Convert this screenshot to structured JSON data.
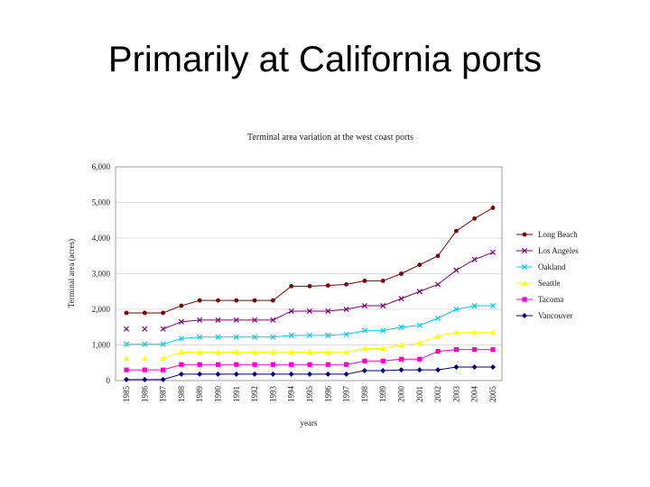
{
  "slide": {
    "title": "Primarily at California ports"
  },
  "chart_data": {
    "type": "line",
    "title": "Terminal area variation at the west coast ports",
    "xlabel": "years",
    "ylabel": "Terminal area (acres)",
    "ylim": [
      0,
      6000
    ],
    "yticks": [
      "0",
      "1,000",
      "2,000",
      "3,000",
      "4,000",
      "5,000",
      "6,000"
    ],
    "ytick_values": [
      0,
      1000,
      2000,
      3000,
      4000,
      5000,
      6000
    ],
    "grid": true,
    "legend": "right",
    "x": [
      "1985",
      "1986",
      "1987",
      "1988",
      "1989",
      "1990",
      "1991",
      "1992",
      "1993",
      "1994",
      "1995",
      "1996",
      "1997",
      "1998",
      "1999",
      "2000",
      "2001",
      "2002",
      "2003",
      "2004",
      "2005"
    ],
    "series": [
      {
        "name": "Long Beach",
        "color": "#800000",
        "marker": "circle",
        "values": [
          1900,
          1900,
          1900,
          2100,
          2250,
          2250,
          2250,
          2250,
          2250,
          2650,
          2650,
          2670,
          2700,
          2800,
          2800,
          3000,
          3250,
          3500,
          4200,
          4550,
          4850
        ]
      },
      {
        "name": "Los Angeles",
        "color": "#800080",
        "marker": "x",
        "values": [
          1450,
          1450,
          1450,
          1650,
          1700,
          1700,
          1700,
          1700,
          1700,
          1950,
          1950,
          1950,
          2000,
          2100,
          2100,
          2300,
          2500,
          2700,
          3100,
          3400,
          3600
        ]
      },
      {
        "name": "Oakland",
        "color": "#00CCFF",
        "marker": "x",
        "values": [
          1020,
          1020,
          1020,
          1180,
          1220,
          1220,
          1220,
          1220,
          1220,
          1270,
          1270,
          1270,
          1300,
          1400,
          1400,
          1500,
          1550,
          1750,
          2000,
          2100,
          2100
        ]
      },
      {
        "name": "Seattle",
        "color": "#FFFF00",
        "marker": "triangle",
        "values": [
          620,
          620,
          620,
          800,
          800,
          800,
          800,
          800,
          800,
          800,
          800,
          800,
          800,
          900,
          900,
          1000,
          1050,
          1250,
          1350,
          1350,
          1350
        ]
      },
      {
        "name": "Tacoma",
        "color": "#FF00CC",
        "marker": "square",
        "values": [
          300,
          300,
          300,
          450,
          450,
          450,
          450,
          450,
          450,
          450,
          450,
          450,
          450,
          550,
          550,
          600,
          600,
          820,
          870,
          870,
          870
        ]
      },
      {
        "name": "Vancouver",
        "color": "#000080",
        "marker": "diamond",
        "values": [
          30,
          30,
          30,
          180,
          180,
          180,
          180,
          180,
          180,
          180,
          180,
          180,
          180,
          280,
          280,
          300,
          300,
          300,
          380,
          380,
          380
        ]
      }
    ]
  }
}
